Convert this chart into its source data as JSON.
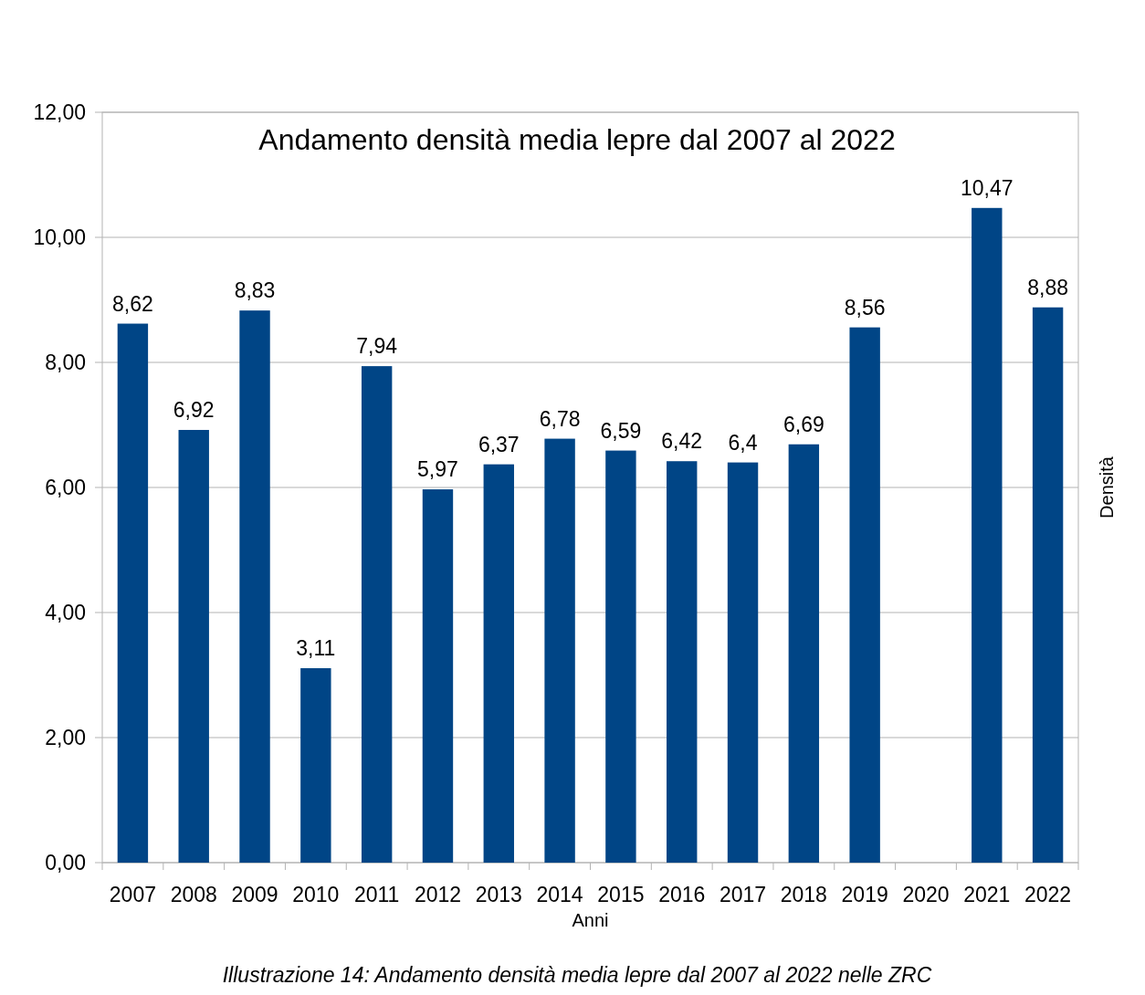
{
  "chart_data": {
    "type": "bar",
    "title": "Andamento densità media lepre dal 2007 al 2022",
    "xlabel": "Anni",
    "ylabel": "Densità",
    "annotations": [
      "Illustrazione 14: Andamento densità media lepre dal 2007 al 2022 nelle ZRC"
    ],
    "categories": [
      "2007",
      "2008",
      "2009",
      "2010",
      "2011",
      "2012",
      "2013",
      "2014",
      "2015",
      "2016",
      "2017",
      "2018",
      "2019",
      "2020",
      "2021",
      "2022"
    ],
    "values": [
      8.62,
      6.92,
      8.83,
      3.11,
      7.94,
      5.97,
      6.37,
      6.78,
      6.59,
      6.42,
      6.4,
      6.69,
      8.56,
      null,
      10.47,
      8.88
    ],
    "value_labels": [
      "8,62",
      "6,92",
      "8,83",
      "3,11",
      "7,94",
      "5,97",
      "6,37",
      "6,78",
      "6,59",
      "6,42",
      "6,4",
      "6,69",
      "8,56",
      null,
      "10,47",
      "8,88"
    ],
    "color": "#004586",
    "ylim": [
      0,
      12
    ],
    "yticks": [
      {
        "value": 0,
        "label": "0,00"
      },
      {
        "value": 2,
        "label": "2,00"
      },
      {
        "value": 4,
        "label": "4,00"
      },
      {
        "value": 6,
        "label": "6,00"
      },
      {
        "value": 8,
        "label": "8,00"
      },
      {
        "value": 10,
        "label": "10,00"
      },
      {
        "value": 12,
        "label": "12,00"
      }
    ],
    "grid": "y"
  }
}
